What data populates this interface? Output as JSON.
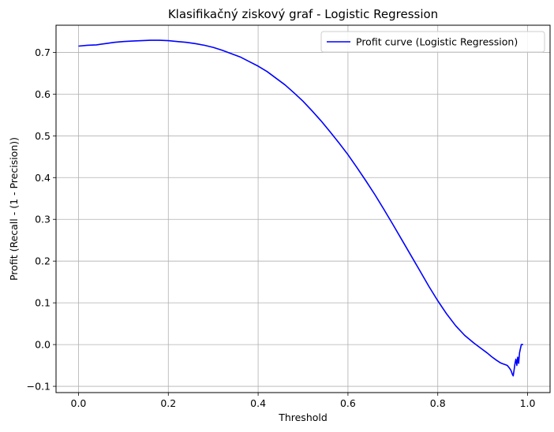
{
  "chart_data": {
    "type": "line",
    "title": "Klasifikačný ziskový graf - Logistic Regression",
    "xlabel": "Threshold",
    "ylabel": "Profit (Recall - (1 - Precision))",
    "xlim": [
      -0.05,
      1.05
    ],
    "ylim": [
      -0.115,
      0.765
    ],
    "xticks": [
      0.0,
      0.2,
      0.4,
      0.6,
      0.8,
      1.0
    ],
    "xtick_labels": [
      "0.0",
      "0.2",
      "0.4",
      "0.6",
      "0.8",
      "1.0"
    ],
    "yticks": [
      -0.1,
      0.0,
      0.1,
      0.2,
      0.3,
      0.4,
      0.5,
      0.6,
      0.7
    ],
    "ytick_labels": [
      "−0.1",
      "0.0",
      "0.1",
      "0.2",
      "0.3",
      "0.4",
      "0.5",
      "0.6",
      "0.7"
    ],
    "grid": true,
    "legend_position": "top-right",
    "series": [
      {
        "name": "Profit curve (Logistic Regression)",
        "color": "#0000ff",
        "x": [
          0.0,
          0.02,
          0.04,
          0.06,
          0.08,
          0.1,
          0.12,
          0.14,
          0.16,
          0.18,
          0.2,
          0.22,
          0.24,
          0.26,
          0.28,
          0.3,
          0.32,
          0.34,
          0.36,
          0.38,
          0.4,
          0.42,
          0.44,
          0.46,
          0.48,
          0.5,
          0.52,
          0.54,
          0.56,
          0.58,
          0.6,
          0.62,
          0.64,
          0.66,
          0.68,
          0.7,
          0.72,
          0.74,
          0.76,
          0.78,
          0.8,
          0.82,
          0.84,
          0.86,
          0.88,
          0.9,
          0.91,
          0.92,
          0.93,
          0.94,
          0.945,
          0.95,
          0.955,
          0.96,
          0.963,
          0.966,
          0.968,
          0.97,
          0.972,
          0.974,
          0.976,
          0.978,
          0.98,
          0.982,
          0.984,
          0.986,
          0.988,
          0.99
        ],
        "y": [
          0.715,
          0.717,
          0.718,
          0.721,
          0.724,
          0.726,
          0.727,
          0.728,
          0.729,
          0.729,
          0.728,
          0.726,
          0.724,
          0.721,
          0.717,
          0.712,
          0.705,
          0.697,
          0.689,
          0.678,
          0.667,
          0.654,
          0.638,
          0.622,
          0.603,
          0.583,
          0.56,
          0.536,
          0.51,
          0.483,
          0.455,
          0.424,
          0.392,
          0.359,
          0.324,
          0.288,
          0.251,
          0.214,
          0.177,
          0.14,
          0.105,
          0.073,
          0.045,
          0.022,
          0.004,
          -0.012,
          -0.02,
          -0.029,
          -0.037,
          -0.044,
          -0.046,
          -0.048,
          -0.05,
          -0.057,
          -0.062,
          -0.071,
          -0.075,
          -0.06,
          -0.045,
          -0.035,
          -0.05,
          -0.03,
          -0.045,
          -0.02,
          -0.01,
          0.0,
          0.0,
          0.0
        ]
      }
    ]
  }
}
